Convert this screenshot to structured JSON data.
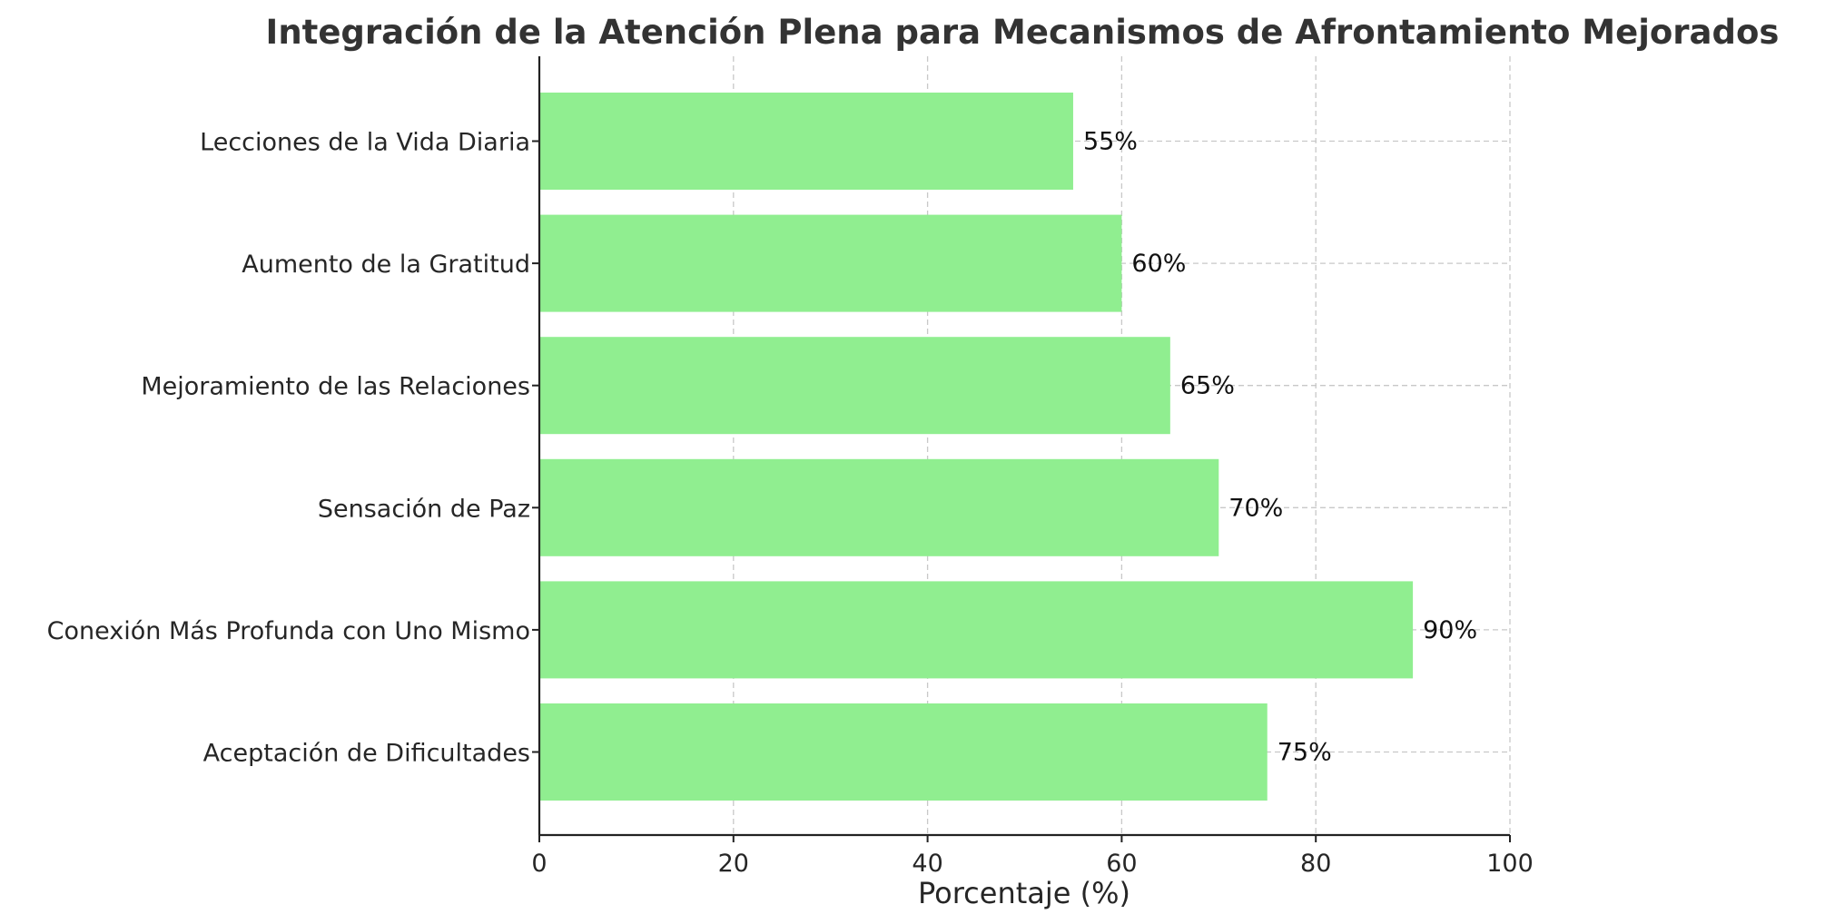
{
  "chart_data": {
    "type": "bar",
    "orientation": "horizontal",
    "title": "Integración de la Atención Plena para Mecanismos de Afrontamiento Mejorados",
    "xlabel": "Porcentaje (%)",
    "ylabel": "",
    "xlim": [
      0,
      100
    ],
    "xticks": [
      0,
      20,
      40,
      60,
      80,
      100
    ],
    "grid": true,
    "bar_color": "#90ee90",
    "categories": [
      "Lecciones de la Vida Diaria",
      "Aumento de la Gratitud",
      "Mejoramiento de las Relaciones",
      "Sensación de Paz",
      "Conexión Más Profunda con Uno Mismo",
      "Aceptación de Dificultades"
    ],
    "values": [
      55,
      60,
      65,
      70,
      90,
      75
    ],
    "value_labels": [
      "55%",
      "60%",
      "65%",
      "70%",
      "90%",
      "75%"
    ]
  }
}
